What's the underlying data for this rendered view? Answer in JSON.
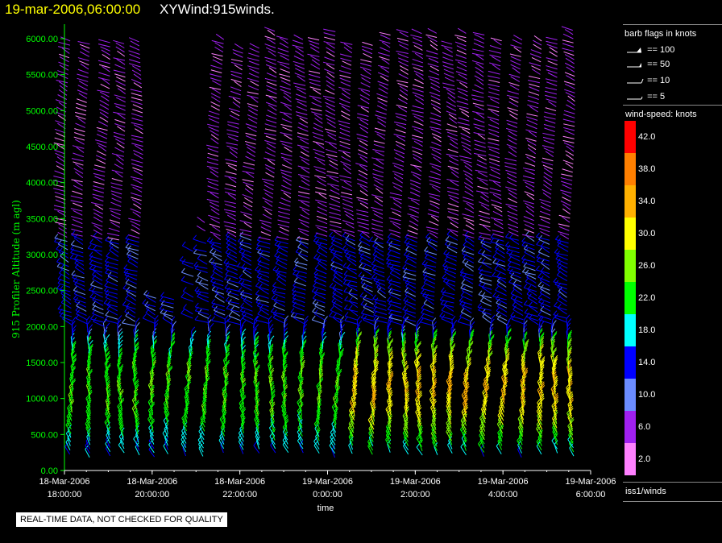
{
  "header": {
    "date": "19-mar-2006,06:00:00",
    "name": "XYWind:915winds."
  },
  "chart_data": {
    "type": "scatter",
    "subtype": "wind-barb time-height",
    "ylabel": "915 Profiler Altitude (m agl)",
    "xlabel": "time",
    "ylim": [
      0,
      6200
    ],
    "y_ticks": [
      "0.00",
      "500.00",
      "1000.00",
      "1500.00",
      "2000.00",
      "2500.00",
      "3000.00",
      "3500.00",
      "4000.00",
      "4500.00",
      "5000.00",
      "5500.00",
      "6000.00"
    ],
    "x_ticks": [
      {
        "date": "18-Mar-2006",
        "time": "18:00:00"
      },
      {
        "date": "18-Mar-2006",
        "time": "20:00:00"
      },
      {
        "date": "18-Mar-2006",
        "time": "22:00:00"
      },
      {
        "date": "19-Mar-2006",
        "time": "0:00:00"
      },
      {
        "date": "19-Mar-2006",
        "time": "2:00:00"
      },
      {
        "date": "19-Mar-2006",
        "time": "4:00:00"
      },
      {
        "date": "19-Mar-2006",
        "time": "6:00:00"
      }
    ],
    "profile_times_hours": [
      0.1,
      0.5,
      0.95,
      1.3,
      1.7,
      2.1,
      2.45,
      2.85,
      3.2,
      3.6,
      4.0,
      4.35,
      4.75,
      5.1,
      5.5,
      5.9,
      6.25,
      6.6,
      7.0,
      7.35,
      7.75,
      8.1,
      8.5,
      8.9,
      9.25,
      9.65,
      10.0,
      10.4,
      10.8,
      11.15,
      11.55
    ],
    "colors": {
      "axis": "#00ff00",
      "tick_label": "#00ff00",
      "ylabel": "#00ff00",
      "xtick_label": "#ffffff"
    }
  },
  "legend": {
    "barb_header": "barb flags in knots",
    "barbs": [
      "== 100",
      "== 50",
      "== 10",
      "== 5"
    ],
    "speed_header": "wind-speed: knots",
    "speed_labels": [
      "42.0",
      "38.0",
      "34.0",
      "30.0",
      "26.0",
      "22.0",
      "18.0",
      "14.0",
      "10.0",
      "6.0",
      "2.0"
    ],
    "speed_colors": [
      "#ff0000",
      "#ff7f00",
      "#ffb000",
      "#ffff00",
      "#80ff00",
      "#00ff00",
      "#00ffff",
      "#0000ff",
      "#6b8cff",
      "#a020f0",
      "#ff80ff"
    ],
    "station": "iss1/winds"
  },
  "footer": {
    "qc_note": "REAL-TIME DATA, NOT CHECKED FOR QUALITY"
  }
}
